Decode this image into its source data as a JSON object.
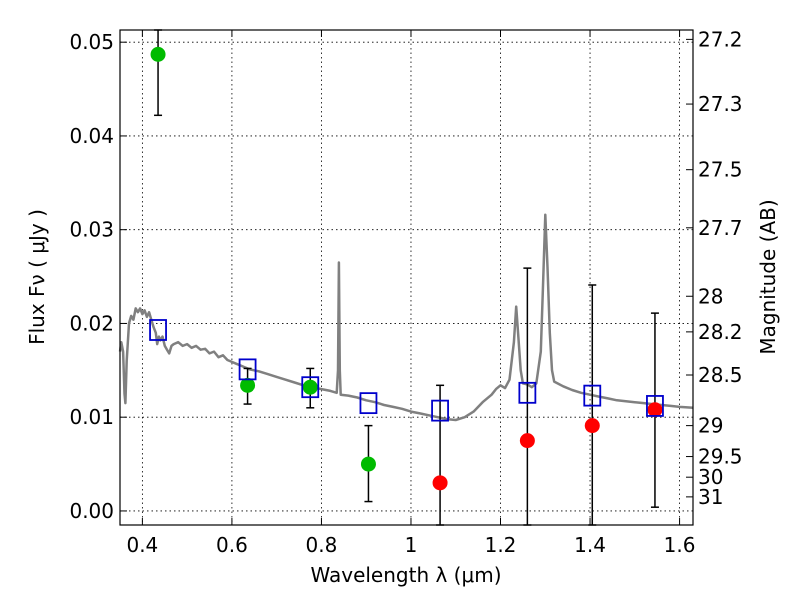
{
  "chart_data": {
    "type": "scatter",
    "xlabel": "Wavelength  λ (μm)",
    "ylabel": "Flux  Fν  ( μJy )",
    "y2label": "Magnitude (AB)",
    "xlim": [
      0.35,
      1.63
    ],
    "ylim": [
      -0.0015,
      0.0513
    ],
    "grid": true,
    "x_ticks": [
      0.4,
      0.6,
      0.8,
      1.0,
      1.2,
      1.4,
      1.6
    ],
    "x_tick_labels": [
      "0.4",
      "0.6",
      "0.8",
      "1",
      "1.2",
      "1.4",
      "1.6"
    ],
    "y_ticks": [
      0.0,
      0.01,
      0.02,
      0.03,
      0.04,
      0.05
    ],
    "y_tick_labels": [
      "0.00",
      "0.01",
      "0.02",
      "0.03",
      "0.04",
      "0.05"
    ],
    "mag_ticks": [
      {
        "flux": 0.0503,
        "label": "27.2"
      },
      {
        "flux": 0.0434,
        "label": "27.3"
      },
      {
        "flux": 0.0364,
        "label": "27.5"
      },
      {
        "flux": 0.0302,
        "label": "27.7"
      },
      {
        "flux": 0.0229,
        "label": "28"
      },
      {
        "flux": 0.0191,
        "label": "28.2"
      },
      {
        "flux": 0.0145,
        "label": "28.5"
      },
      {
        "flux": 0.0091,
        "label": "29"
      },
      {
        "flux": 0.0058,
        "label": "29.5"
      },
      {
        "flux": 0.0036,
        "label": "30"
      },
      {
        "flux": 0.0015,
        "label": "31"
      }
    ],
    "colors": {
      "green": "#00bb00",
      "red": "#ff0000",
      "blue_square": "#0000cc",
      "model": "#808080",
      "errorbar": "#000000",
      "grid": "#000000"
    },
    "series": [
      {
        "marker": "circle",
        "color": "green",
        "points": [
          {
            "x": 0.435,
            "y": 0.0487,
            "lo": 0.0422,
            "hi": 0.0513
          },
          {
            "x": 0.635,
            "y": 0.0134,
            "lo": 0.0114,
            "hi": 0.0152
          },
          {
            "x": 0.775,
            "y": 0.0132,
            "lo": 0.011,
            "hi": 0.0152
          },
          {
            "x": 0.905,
            "y": 0.005,
            "lo": 0.001,
            "hi": 0.0091
          }
        ]
      },
      {
        "marker": "circle",
        "color": "red",
        "points": [
          {
            "x": 1.065,
            "y": 0.003,
            "lo": -0.0015,
            "hi": 0.0134
          },
          {
            "x": 1.26,
            "y": 0.0075,
            "lo": -0.0015,
            "hi": 0.0259
          },
          {
            "x": 1.405,
            "y": 0.0091,
            "lo": -0.0015,
            "hi": 0.0241
          },
          {
            "x": 1.545,
            "y": 0.0108,
            "lo": 0.0004,
            "hi": 0.0211
          }
        ]
      },
      {
        "marker": "square",
        "color": "blue_square",
        "points": [
          {
            "x": 0.435,
            "y": 0.0193
          },
          {
            "x": 0.635,
            "y": 0.0151
          },
          {
            "x": 0.775,
            "y": 0.0132
          },
          {
            "x": 0.905,
            "y": 0.0115
          },
          {
            "x": 1.065,
            "y": 0.0107
          },
          {
            "x": 1.26,
            "y": 0.0126
          },
          {
            "x": 1.405,
            "y": 0.0123
          },
          {
            "x": 1.545,
            "y": 0.0112
          }
        ]
      },
      {
        "line": "model",
        "color": "model",
        "points": [
          [
            0.35,
            0.017
          ],
          [
            0.353,
            0.018
          ],
          [
            0.357,
            0.017
          ],
          [
            0.36,
            0.0125
          ],
          [
            0.362,
            0.0115
          ],
          [
            0.365,
            0.016
          ],
          [
            0.37,
            0.02
          ],
          [
            0.375,
            0.0208
          ],
          [
            0.38,
            0.0204
          ],
          [
            0.385,
            0.0216
          ],
          [
            0.39,
            0.0212
          ],
          [
            0.395,
            0.0216
          ],
          [
            0.4,
            0.021
          ],
          [
            0.405,
            0.0214
          ],
          [
            0.41,
            0.0207
          ],
          [
            0.415,
            0.0212
          ],
          [
            0.42,
            0.0204
          ],
          [
            0.425,
            0.0196
          ],
          [
            0.43,
            0.019
          ],
          [
            0.433,
            0.0178
          ],
          [
            0.437,
            0.0186
          ],
          [
            0.44,
            0.0182
          ],
          [
            0.445,
            0.0186
          ],
          [
            0.45,
            0.0176
          ],
          [
            0.455,
            0.0172
          ],
          [
            0.46,
            0.0168
          ],
          [
            0.465,
            0.0176
          ],
          [
            0.47,
            0.0178
          ],
          [
            0.48,
            0.018
          ],
          [
            0.49,
            0.0176
          ],
          [
            0.5,
            0.0178
          ],
          [
            0.51,
            0.0174
          ],
          [
            0.52,
            0.0176
          ],
          [
            0.53,
            0.0172
          ],
          [
            0.54,
            0.0173
          ],
          [
            0.55,
            0.0168
          ],
          [
            0.56,
            0.017
          ],
          [
            0.57,
            0.0164
          ],
          [
            0.58,
            0.0166
          ],
          [
            0.59,
            0.0161
          ],
          [
            0.6,
            0.0159
          ],
          [
            0.61,
            0.0157
          ],
          [
            0.62,
            0.0155
          ],
          [
            0.63,
            0.0153
          ],
          [
            0.64,
            0.0151
          ],
          [
            0.66,
            0.0149
          ],
          [
            0.68,
            0.0146
          ],
          [
            0.7,
            0.0143
          ],
          [
            0.72,
            0.014
          ],
          [
            0.74,
            0.0137
          ],
          [
            0.76,
            0.0134
          ],
          [
            0.78,
            0.0132
          ],
          [
            0.8,
            0.013
          ],
          [
            0.82,
            0.0128
          ],
          [
            0.834,
            0.0126
          ],
          [
            0.837,
            0.015
          ],
          [
            0.839,
            0.0265
          ],
          [
            0.841,
            0.015
          ],
          [
            0.843,
            0.0124
          ],
          [
            0.86,
            0.0123
          ],
          [
            0.88,
            0.0121
          ],
          [
            0.9,
            0.0118
          ],
          [
            0.92,
            0.0116
          ],
          [
            0.94,
            0.0113
          ],
          [
            0.96,
            0.0111
          ],
          [
            0.98,
            0.0109
          ],
          [
            1.0,
            0.0106
          ],
          [
            1.02,
            0.0104
          ],
          [
            1.04,
            0.0102
          ],
          [
            1.06,
            0.01
          ],
          [
            1.08,
            0.0098
          ],
          [
            1.1,
            0.0097
          ],
          [
            1.12,
            0.01
          ],
          [
            1.14,
            0.0106
          ],
          [
            1.16,
            0.0116
          ],
          [
            1.18,
            0.0124
          ],
          [
            1.19,
            0.013
          ],
          [
            1.2,
            0.0134
          ],
          [
            1.21,
            0.0131
          ],
          [
            1.22,
            0.014
          ],
          [
            1.23,
            0.018
          ],
          [
            1.235,
            0.0218
          ],
          [
            1.24,
            0.0185
          ],
          [
            1.245,
            0.015
          ],
          [
            1.25,
            0.0136
          ],
          [
            1.26,
            0.0135
          ],
          [
            1.27,
            0.0132
          ],
          [
            1.28,
            0.0136
          ],
          [
            1.29,
            0.017
          ],
          [
            1.295,
            0.024
          ],
          [
            1.3,
            0.0316
          ],
          [
            1.305,
            0.026
          ],
          [
            1.31,
            0.019
          ],
          [
            1.315,
            0.015
          ],
          [
            1.32,
            0.0138
          ],
          [
            1.34,
            0.0133
          ],
          [
            1.36,
            0.0129
          ],
          [
            1.38,
            0.0126
          ],
          [
            1.4,
            0.0124
          ],
          [
            1.42,
            0.0122
          ],
          [
            1.44,
            0.012
          ],
          [
            1.46,
            0.0118
          ],
          [
            1.48,
            0.0117
          ],
          [
            1.5,
            0.0116
          ],
          [
            1.52,
            0.0115
          ],
          [
            1.54,
            0.0114
          ],
          [
            1.56,
            0.0113
          ],
          [
            1.58,
            0.0112
          ],
          [
            1.6,
            0.0111
          ],
          [
            1.63,
            0.011
          ]
        ]
      }
    ]
  }
}
